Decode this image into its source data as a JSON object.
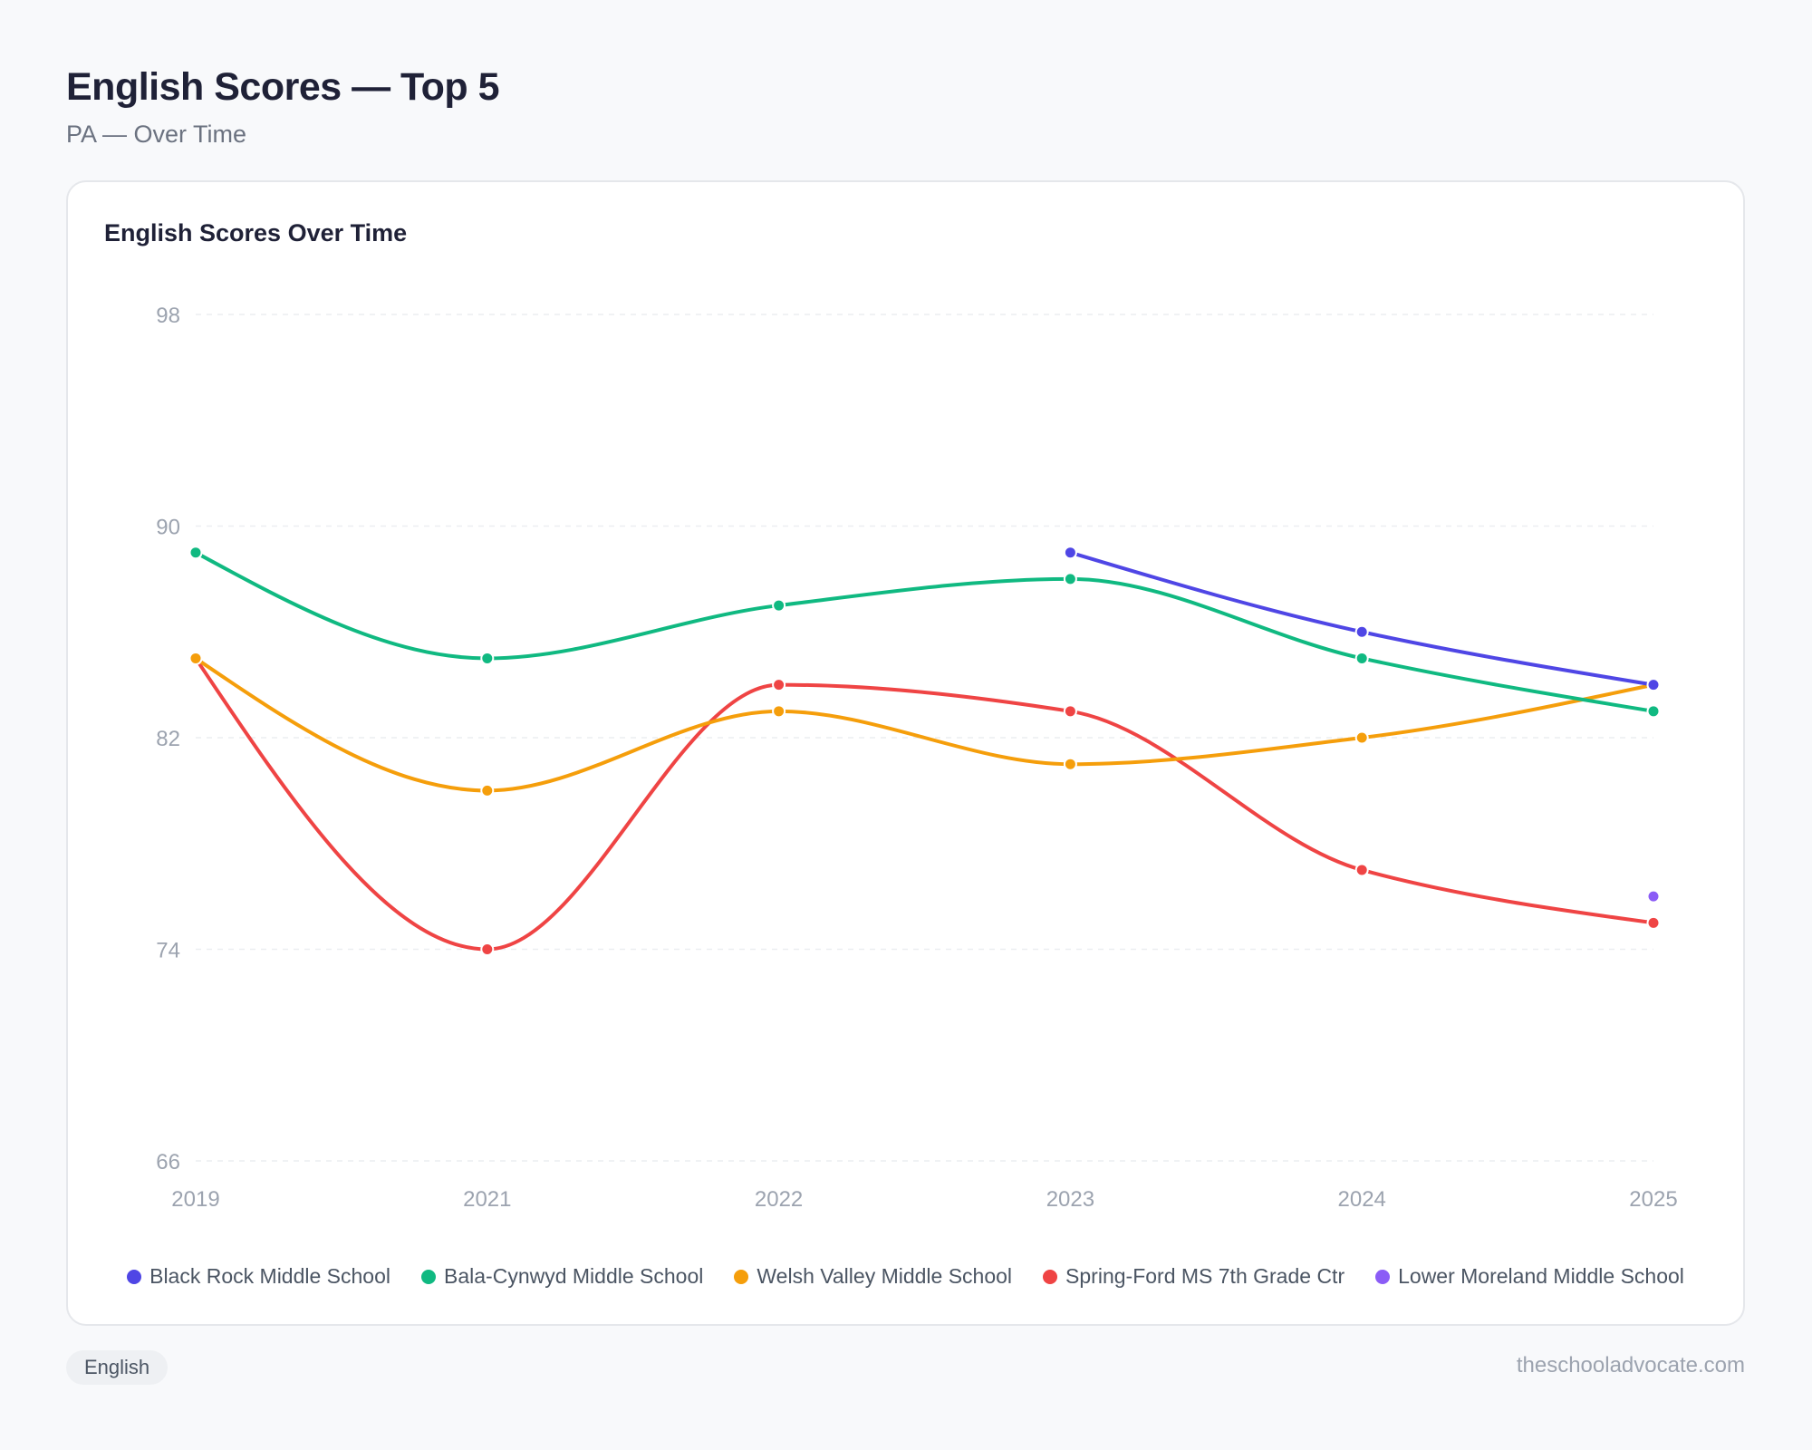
{
  "header": {
    "title": "English Scores — Top 5",
    "subtitle": "PA — Over Time"
  },
  "card": {
    "title": "English Scores Over Time"
  },
  "footer": {
    "tag": "English",
    "site": "theschooladvocate.com"
  },
  "chart_data": {
    "type": "line",
    "title": "English Scores Over Time",
    "categories": [
      "2019",
      "2021",
      "2022",
      "2023",
      "2024",
      "2025"
    ],
    "ylim": [
      66,
      98
    ],
    "yticks": [
      66,
      74,
      82,
      90,
      98
    ],
    "grid": true,
    "legend": "bottom",
    "series": [
      {
        "name": "Black Rock Middle School",
        "color": "#4f46e5",
        "values": [
          null,
          null,
          null,
          89,
          86,
          84
        ]
      },
      {
        "name": "Bala-Cynwyd Middle School",
        "color": "#10b981",
        "values": [
          89,
          85,
          87,
          88,
          85,
          83
        ]
      },
      {
        "name": "Welsh Valley Middle School",
        "color": "#f59e0b",
        "values": [
          85,
          80,
          83,
          81,
          82,
          84
        ]
      },
      {
        "name": "Spring-Ford MS 7th Grade Ctr",
        "color": "#ef4444",
        "values": [
          85,
          74,
          84,
          83,
          77,
          75
        ]
      },
      {
        "name": "Lower Moreland Middle School",
        "color": "#8b5cf6",
        "values": [
          null,
          null,
          null,
          null,
          null,
          76
        ]
      }
    ]
  }
}
